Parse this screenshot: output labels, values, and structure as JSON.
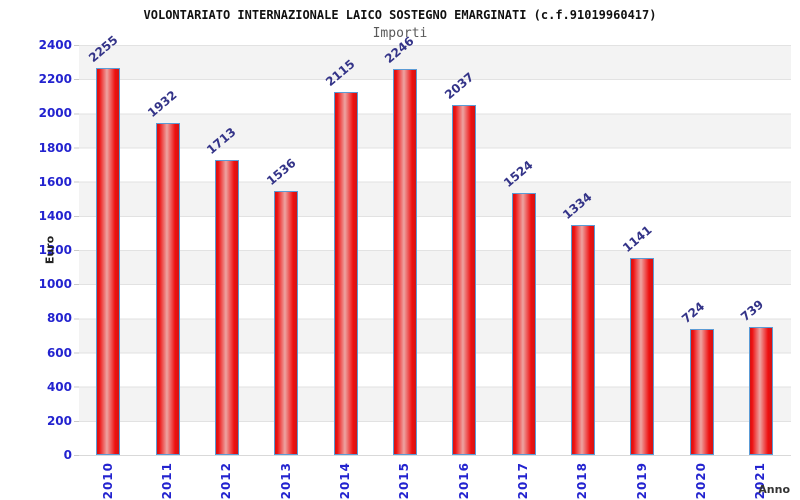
{
  "header": {
    "title": "VOLONTARIATO INTERNAZIONALE LAICO SOSTEGNO EMARGINATI (c.f.91019960417)",
    "subtitle": "Importi"
  },
  "chart_data": {
    "type": "bar",
    "title": "VOLONTARIATO INTERNAZIONALE LAICO SOSTEGNO EMARGINATI (c.f.91019960417)",
    "subtitle": "Importi",
    "xlabel": "Anno",
    "ylabel": "Euro",
    "categories": [
      "2010",
      "2011",
      "2012",
      "2013",
      "2014",
      "2015",
      "2016",
      "2017",
      "2018",
      "2019",
      "2020",
      "2021"
    ],
    "values": [
      2255,
      1932,
      1713,
      1536,
      2115,
      2246,
      2037,
      1524,
      1334,
      1141,
      724,
      739
    ],
    "ylim": [
      0,
      2400
    ],
    "yticks": [
      0,
      200,
      400,
      600,
      800,
      1000,
      1200,
      1400,
      1600,
      1800,
      2000,
      2200,
      2400
    ],
    "grid": "horizontal gridlines every 200 with alternating gray/white bands",
    "legend": "none",
    "colors": {
      "bar_fill_edge": "#ee1010",
      "bar_fill_center": "#eda4a2",
      "bar_border": "#5b9bd5",
      "tick_label": "#2323cf",
      "value_label": "#333388",
      "band_gray": "#f3f3f3",
      "gridline": "#e2e2e2",
      "title": "#111111",
      "subtitle": "#5a5a5a"
    }
  }
}
